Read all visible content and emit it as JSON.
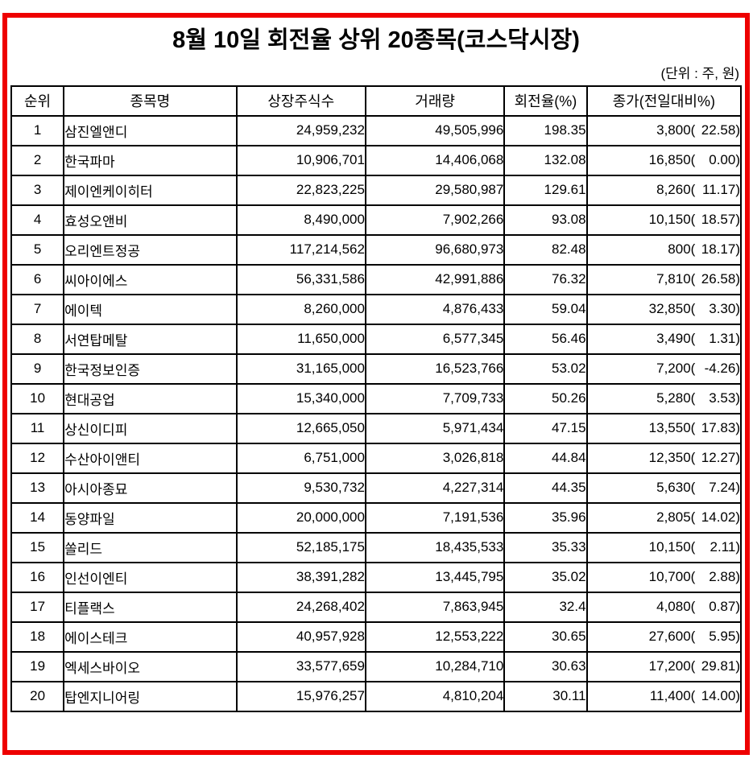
{
  "title": "8월 10일 회전율 상위 20종목(코스닥시장)",
  "unit_note": "(단위 : 주, 원)",
  "colors": {
    "frame_border": "#ee0000",
    "grid_border": "#000000",
    "text": "#000000",
    "background": "#ffffff"
  },
  "table": {
    "headers": [
      "순위",
      "종목명",
      "상장주식수",
      "거래량",
      "회전율(%)",
      "종가(전일대비%)"
    ],
    "rows": [
      {
        "rank": "1",
        "name": "삼진엘앤디",
        "shares": "24,959,232",
        "volume": "49,505,996",
        "turnover": "198.35",
        "close": "3,800",
        "change": "22.58"
      },
      {
        "rank": "2",
        "name": "한국파마",
        "shares": "10,906,701",
        "volume": "14,406,068",
        "turnover": "132.08",
        "close": "16,850",
        "change": "0.00"
      },
      {
        "rank": "3",
        "name": "제이엔케이히터",
        "shares": "22,823,225",
        "volume": "29,580,987",
        "turnover": "129.61",
        "close": "8,260",
        "change": "11.17"
      },
      {
        "rank": "4",
        "name": "효성오앤비",
        "shares": "8,490,000",
        "volume": "7,902,266",
        "turnover": "93.08",
        "close": "10,150",
        "change": "18.57"
      },
      {
        "rank": "5",
        "name": "오리엔트정공",
        "shares": "117,214,562",
        "volume": "96,680,973",
        "turnover": "82.48",
        "close": "800",
        "change": "18.17"
      },
      {
        "rank": "6",
        "name": "씨아이에스",
        "shares": "56,331,586",
        "volume": "42,991,886",
        "turnover": "76.32",
        "close": "7,810",
        "change": "26.58"
      },
      {
        "rank": "7",
        "name": "에이텍",
        "shares": "8,260,000",
        "volume": "4,876,433",
        "turnover": "59.04",
        "close": "32,850",
        "change": "3.30"
      },
      {
        "rank": "8",
        "name": "서연탑메탈",
        "shares": "11,650,000",
        "volume": "6,577,345",
        "turnover": "56.46",
        "close": "3,490",
        "change": "1.31"
      },
      {
        "rank": "9",
        "name": "한국정보인증",
        "shares": "31,165,000",
        "volume": "16,523,766",
        "turnover": "53.02",
        "close": "7,200",
        "change": "-4.26"
      },
      {
        "rank": "10",
        "name": "현대공업",
        "shares": "15,340,000",
        "volume": "7,709,733",
        "turnover": "50.26",
        "close": "5,280",
        "change": "3.53"
      },
      {
        "rank": "11",
        "name": "상신이디피",
        "shares": "12,665,050",
        "volume": "5,971,434",
        "turnover": "47.15",
        "close": "13,550",
        "change": "17.83"
      },
      {
        "rank": "12",
        "name": "수산아이앤티",
        "shares": "6,751,000",
        "volume": "3,026,818",
        "turnover": "44.84",
        "close": "12,350",
        "change": "12.27"
      },
      {
        "rank": "13",
        "name": "아시아종묘",
        "shares": "9,530,732",
        "volume": "4,227,314",
        "turnover": "44.35",
        "close": "5,630",
        "change": "7.24"
      },
      {
        "rank": "14",
        "name": "동양파일",
        "shares": "20,000,000",
        "volume": "7,191,536",
        "turnover": "35.96",
        "close": "2,805",
        "change": "14.02"
      },
      {
        "rank": "15",
        "name": "쏠리드",
        "shares": "52,185,175",
        "volume": "18,435,533",
        "turnover": "35.33",
        "close": "10,150",
        "change": "2.11"
      },
      {
        "rank": "16",
        "name": "인선이엔티",
        "shares": "38,391,282",
        "volume": "13,445,795",
        "turnover": "35.02",
        "close": "10,700",
        "change": "2.88"
      },
      {
        "rank": "17",
        "name": "티플랙스",
        "shares": "24,268,402",
        "volume": "7,863,945",
        "turnover": "32.4",
        "close": "4,080",
        "change": "0.87"
      },
      {
        "rank": "18",
        "name": "에이스테크",
        "shares": "40,957,928",
        "volume": "12,553,222",
        "turnover": "30.65",
        "close": "27,600",
        "change": "5.95"
      },
      {
        "rank": "19",
        "name": "엑세스바이오",
        "shares": "33,577,659",
        "volume": "10,284,710",
        "turnover": "30.63",
        "close": "17,200",
        "change": "29.81"
      },
      {
        "rank": "20",
        "name": "탑엔지니어링",
        "shares": "15,976,257",
        "volume": "4,810,204",
        "turnover": "30.11",
        "close": "11,400",
        "change": "14.00"
      }
    ]
  }
}
